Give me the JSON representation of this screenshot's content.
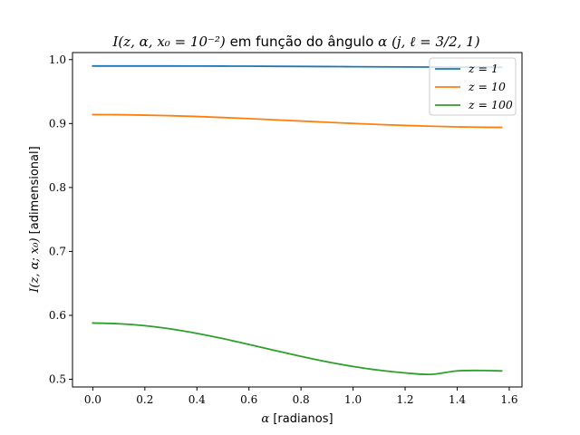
{
  "chart_data": {
    "type": "line",
    "title": {
      "math": "I(z, α, x₀ = 10⁻²)",
      "text": " em função do ângulo ",
      "alpha": "α",
      "params": " (j, ℓ = 3/2, 1)"
    },
    "xlabel": {
      "math": "α",
      "text": " [radianos]"
    },
    "ylabel": {
      "math": "I(z, α; x₀)",
      "text": " [adimensional]"
    },
    "xlim": [
      -0.078,
      1.649
    ],
    "ylim": [
      0.488,
      1.011
    ],
    "xticks": [
      "0.0",
      "0.2",
      "0.4",
      "0.6",
      "0.8",
      "1.0",
      "1.2",
      "1.4",
      "1.6"
    ],
    "xtick_values": [
      0.0,
      0.2,
      0.4,
      0.6,
      0.8,
      1.0,
      1.2,
      1.4,
      1.6
    ],
    "yticks": [
      "0.5",
      "0.6",
      "0.7",
      "0.8",
      "0.9",
      "1.0"
    ],
    "ytick_values": [
      0.5,
      0.6,
      0.7,
      0.8,
      0.9,
      1.0
    ],
    "grid": false,
    "legend_position": "upper right",
    "x": [
      0.0,
      0.1,
      0.2,
      0.3,
      0.4,
      0.5,
      0.6,
      0.7,
      0.8,
      0.9,
      1.0,
      1.1,
      1.2,
      1.3,
      1.4,
      1.5,
      1.5708
    ],
    "series": [
      {
        "name": "z = 1",
        "color": "#1f77b4",
        "values": [
          0.99,
          0.99,
          0.99,
          0.99,
          0.9899,
          0.9898,
          0.9897,
          0.9895,
          0.9893,
          0.9891,
          0.9889,
          0.9887,
          0.9885,
          0.9883,
          0.9882,
          0.9881,
          0.988
        ]
      },
      {
        "name": "z = 10",
        "color": "#ff7f0e",
        "values": [
          0.914,
          0.9138,
          0.9131,
          0.9122,
          0.911,
          0.9094,
          0.9077,
          0.9058,
          0.9039,
          0.902,
          0.9002,
          0.8985,
          0.897,
          0.8958,
          0.8948,
          0.8942,
          0.894
        ]
      },
      {
        "name": "z = 100",
        "color": "#2ca02c",
        "values": [
          0.588,
          0.5869,
          0.5838,
          0.5787,
          0.5718,
          0.5636,
          0.5545,
          0.5451,
          0.5359,
          0.5274,
          0.5201,
          0.5142,
          0.51,
          0.5077,
          0.5132,
          0.5137,
          0.5131
        ]
      }
    ]
  }
}
